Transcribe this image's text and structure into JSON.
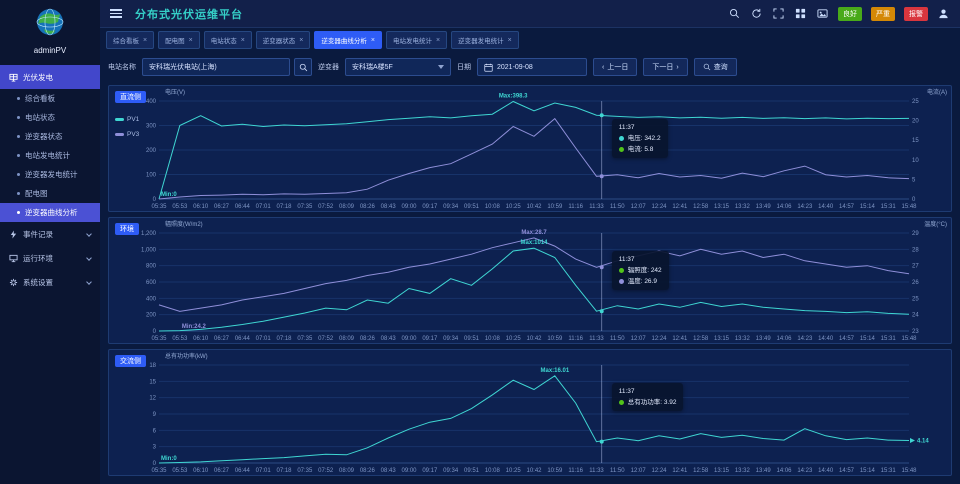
{
  "header": {
    "title": "分布式光伏运维平台",
    "badges": [
      {
        "label": "良好",
        "color": "#49aa19"
      },
      {
        "label": "严重",
        "color": "#d48806"
      },
      {
        "label": "报警",
        "color": "#d9363e"
      }
    ]
  },
  "sidebar": {
    "user": "adminPV",
    "menu": [
      {
        "label": "光伏发电",
        "icon": "solar-icon",
        "type": "section",
        "active": true,
        "children": [
          {
            "label": "综合看板",
            "active": false
          },
          {
            "label": "电站状态",
            "active": false
          },
          {
            "label": "逆变器状态",
            "active": false
          },
          {
            "label": "电站发电统计",
            "active": false
          },
          {
            "label": "逆变器发电统计",
            "active": false
          },
          {
            "label": "配电图",
            "active": false
          },
          {
            "label": "逆变器曲线分析",
            "active": true
          }
        ]
      },
      {
        "label": "事件记录",
        "icon": "event-icon",
        "type": "collapsed"
      },
      {
        "label": "运行环境",
        "icon": "environment-icon",
        "type": "collapsed"
      },
      {
        "label": "系统设置",
        "icon": "settings-icon",
        "type": "collapsed"
      }
    ]
  },
  "tabs": {
    "items": [
      "综合看板",
      "配电图",
      "电站状态",
      "逆变器状态",
      "逆变器曲线分析",
      "电站发电统计",
      "逆变器发电统计"
    ],
    "active_index": 4
  },
  "filters": {
    "station_label": "电站名称",
    "station_value": "安科瑞光伏电站(上海)",
    "inverter_label": "逆变器",
    "inverter_value": "安科瑞A楼5F",
    "date_label": "日期",
    "date_value": "2021-09-08",
    "prev_button": "上一日",
    "next_button": "下一日",
    "query_button": "查询"
  },
  "x_labels": [
    "05:35",
    "05:53",
    "06:10",
    "06:27",
    "06:44",
    "07:01",
    "07:18",
    "07:35",
    "07:52",
    "08:09",
    "08:26",
    "08:43",
    "09:00",
    "09:17",
    "09:34",
    "09:51",
    "10:08",
    "10:25",
    "10:42",
    "10:59",
    "11:16",
    "11:33",
    "11:50",
    "12:07",
    "12:24",
    "12:41",
    "12:58",
    "13:15",
    "13:32",
    "13:49",
    "14:06",
    "14:23",
    "14:40",
    "14:57",
    "15:14",
    "15:31",
    "15:48"
  ],
  "charts": [
    {
      "type": "line",
      "tag": "直流侧",
      "y_left": {
        "label": "电压(V)",
        "min": 0,
        "max": 400,
        "ticks": [
          0,
          100,
          200,
          300,
          400
        ]
      },
      "y_right": {
        "label": "电流(A)",
        "min": 0,
        "max": 25,
        "ticks": [
          0,
          5,
          10,
          15,
          20,
          25
        ]
      },
      "legend": [
        {
          "label": "PV1",
          "color": "#3fd6d2"
        },
        {
          "label": "PV3",
          "color": "#8f8fd9"
        }
      ],
      "series": [
        {
          "name": "电压",
          "axis": "left",
          "color": "#3fd6d2",
          "values": [
            0,
            300,
            340,
            298,
            305,
            296,
            302,
            299,
            303,
            307,
            315,
            324,
            330,
            336,
            331,
            340,
            346,
            398,
            360,
            392,
            374,
            342,
            337,
            333,
            336,
            331,
            334,
            330,
            333,
            329,
            332,
            328,
            331,
            327,
            330,
            328,
            329
          ]
        },
        {
          "name": "电流",
          "axis": "right",
          "color": "#8f8fd9",
          "values": [
            0,
            0.5,
            0.9,
            1.0,
            1.2,
            1.1,
            1.3,
            1.2,
            1.4,
            1.6,
            2.5,
            4.8,
            6.5,
            8.0,
            9.0,
            11.5,
            14.0,
            18.5,
            16.0,
            20.5,
            13.0,
            5.8,
            6.2,
            5.4,
            6.5,
            5.6,
            6.0,
            5.3,
            6.6,
            5.7,
            7.2,
            8.4,
            6.2,
            5.6,
            6.0,
            5.4,
            5.2
          ]
        }
      ],
      "annotations": [
        {
          "type": "max",
          "series": 0,
          "text": "Max:398.3",
          "color": "#3fd6d2"
        },
        {
          "type": "min",
          "series": 0,
          "text": "Min:0",
          "color": "#3fd6d2"
        }
      ],
      "marker": {
        "index": 21.25,
        "time": "11:37"
      },
      "tooltip": {
        "time": "11:37",
        "rows": [
          {
            "label": "电压",
            "value": "342.2",
            "color": "#3fd6d2"
          },
          {
            "label": "电流",
            "value": "5.8",
            "color": "#52c41a"
          }
        ]
      }
    },
    {
      "type": "line",
      "tag": "环境",
      "y_left": {
        "label": "辐照度(W/m2)",
        "min": 0,
        "max": 1200,
        "ticks": [
          0,
          200,
          400,
          600,
          800,
          1000,
          1200
        ]
      },
      "y_right": {
        "label": "温度(°C)",
        "min": 23,
        "max": 29,
        "ticks": [
          23,
          24,
          25,
          26,
          27,
          28,
          29
        ]
      },
      "legend": null,
      "series": [
        {
          "name": "辐照度",
          "axis": "left",
          "color": "#3fd6d2",
          "values": [
            0,
            5,
            20,
            45,
            80,
            120,
            170,
            220,
            280,
            260,
            380,
            340,
            520,
            460,
            640,
            560,
            760,
            980,
            1014,
            900,
            560,
            242,
            310,
            270,
            330,
            290,
            350,
            300,
            330,
            290,
            270,
            250,
            240,
            225,
            235,
            215,
            205
          ]
        },
        {
          "name": "温度",
          "axis": "right",
          "color": "#8f8fd9",
          "values": [
            24.6,
            24.2,
            24.4,
            24.6,
            24.9,
            25.1,
            25.3,
            25.6,
            25.9,
            26.1,
            26.4,
            26.6,
            26.9,
            27.1,
            27.4,
            27.7,
            28.1,
            28.4,
            28.7,
            28.2,
            27.4,
            26.9,
            27.3,
            27.6,
            27.9,
            27.6,
            28.0,
            27.7,
            27.9,
            27.5,
            27.7,
            27.3,
            27.1,
            26.9,
            27.0,
            26.7,
            26.5
          ]
        }
      ],
      "annotations": [
        {
          "type": "max",
          "series": 0,
          "text": "Max:1014",
          "color": "#3fd6d2"
        },
        {
          "type": "max",
          "series": 1,
          "text": "Max:28.7",
          "color": "#8f8fd9"
        },
        {
          "type": "min",
          "series": 1,
          "text": "Min:24.2",
          "color": "#8f8fd9"
        }
      ],
      "marker": {
        "index": 21.25,
        "time": "11:37"
      },
      "tooltip": {
        "time": "11:37",
        "rows": [
          {
            "label": "辐照度",
            "value": "242",
            "color": "#52c41a"
          },
          {
            "label": "温度",
            "value": "26.9",
            "color": "#8f8fd9"
          }
        ]
      }
    },
    {
      "type": "line",
      "tag": "交流侧",
      "y_left": {
        "label": "总有功功率(kW)",
        "min": 0,
        "max": 18,
        "ticks": [
          0,
          3,
          6,
          9,
          12,
          15,
          18
        ]
      },
      "y_right": null,
      "legend": null,
      "series": [
        {
          "name": "总有功功率",
          "axis": "left",
          "color": "#3fd6d2",
          "values": [
            0,
            0.1,
            0.2,
            0.4,
            0.6,
            0.8,
            1.0,
            1.3,
            1.6,
            1.5,
            2.8,
            4.6,
            6.2,
            7.5,
            8.2,
            10.0,
            12.5,
            15.2,
            13.5,
            16.01,
            11.0,
            3.92,
            4.6,
            4.1,
            5.0,
            4.4,
            5.4,
            4.7,
            5.1,
            4.5,
            4.2,
            6.3,
            5.0,
            4.3,
            4.6,
            4.2,
            4.14
          ]
        }
      ],
      "annotations": [
        {
          "type": "max",
          "series": 0,
          "text": "Max:16.01",
          "color": "#3fd6d2"
        },
        {
          "type": "min",
          "series": 0,
          "text": "Min:0",
          "color": "#3fd6d2"
        },
        {
          "type": "end",
          "series": 0,
          "text": "4.14",
          "color": "#3fd6d2"
        }
      ],
      "marker": {
        "index": 21.25,
        "time": "11:37"
      },
      "tooltip": {
        "time": "11:37",
        "rows": [
          {
            "label": "总有功功率",
            "value": "3.92",
            "color": "#52c41a"
          }
        ]
      }
    }
  ]
}
